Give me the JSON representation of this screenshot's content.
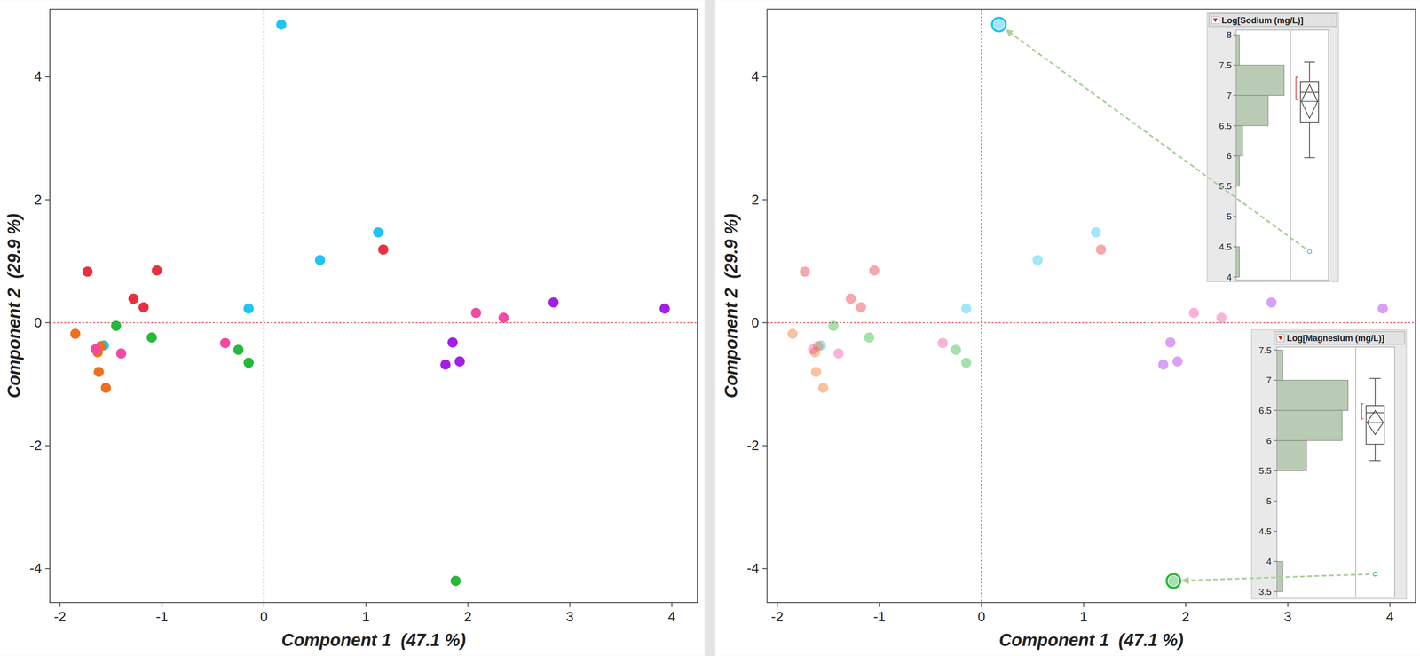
{
  "chart_data": [
    {
      "type": "scatter",
      "xlabel": "Component 1  (47.1 %)",
      "ylabel": "Component 2  (29.9 %)",
      "xlim": [
        -2.1,
        4.25
      ],
      "ylim": [
        -4.55,
        5.1
      ],
      "xticks": [
        -2,
        -1,
        0,
        1,
        2,
        3,
        4
      ],
      "yticks": [
        -4,
        -2,
        0,
        2,
        4
      ],
      "reference": {
        "x": 0,
        "y": 0
      },
      "marker": "circle",
      "series": [
        {
          "color": "#1ec4f2",
          "x": [
            0.17,
            1.12,
            0.55,
            -0.15,
            -1.57
          ],
          "values": [
            4.85,
            1.47,
            1.02,
            0.23,
            -0.37
          ]
        },
        {
          "color": "#e8303f",
          "x": [
            -1.73,
            -1.05,
            -1.28,
            -1.18,
            1.17
          ],
          "values": [
            0.83,
            0.85,
            0.39,
            0.25,
            1.19
          ]
        },
        {
          "color": "#eb7120",
          "x": [
            -1.85,
            -1.63,
            -1.6,
            -1.62,
            -1.55
          ],
          "values": [
            -0.18,
            -0.48,
            -0.38,
            -0.8,
            -1.06
          ]
        },
        {
          "color": "#25b83a",
          "x": [
            -1.45,
            -1.1,
            -0.25,
            -0.15,
            1.88
          ],
          "values": [
            -0.05,
            -0.24,
            -0.44,
            -0.65,
            -4.2
          ]
        },
        {
          "color": "#f04aa5",
          "x": [
            -1.4,
            -1.65,
            -0.38,
            2.08,
            2.35
          ],
          "values": [
            -0.5,
            -0.43,
            -0.33,
            0.16,
            0.08
          ]
        },
        {
          "color": "#a21fe6",
          "x": [
            1.85,
            1.92,
            1.78,
            2.84,
            3.93
          ],
          "values": [
            -0.32,
            -0.63,
            -0.68,
            0.33,
            0.23
          ]
        }
      ]
    },
    {
      "type": "scatter",
      "xlabel": "Component 1  (47.1 %)",
      "ylabel": "Component 2  (29.9 %)",
      "xlim": [
        -2.1,
        4.25
      ],
      "ylim": [
        -4.55,
        5.1
      ],
      "xticks": [
        -2,
        -1,
        0,
        1,
        2,
        3,
        4
      ],
      "yticks": [
        -4,
        -2,
        0,
        2,
        4
      ],
      "reference": {
        "x": 0,
        "y": 0
      },
      "marker": "circle",
      "series": [
        {
          "color": "#1ec4f2",
          "x": [
            0.17,
            1.12,
            0.55,
            -0.15,
            -1.57
          ],
          "values": [
            4.85,
            1.47,
            1.02,
            0.23,
            -0.37
          ]
        },
        {
          "color": "#e8303f",
          "x": [
            -1.73,
            -1.05,
            -1.28,
            -1.18,
            1.17
          ],
          "values": [
            0.83,
            0.85,
            0.39,
            0.25,
            1.19
          ]
        },
        {
          "color": "#eb7120",
          "x": [
            -1.85,
            -1.63,
            -1.6,
            -1.62,
            -1.55
          ],
          "values": [
            -0.18,
            -0.48,
            -0.38,
            -0.8,
            -1.06
          ]
        },
        {
          "color": "#25b83a",
          "x": [
            -1.45,
            -1.1,
            -0.25,
            -0.15,
            1.88
          ],
          "values": [
            -0.05,
            -0.24,
            -0.44,
            -0.65,
            -4.2
          ]
        },
        {
          "color": "#f04aa5",
          "x": [
            -1.4,
            -1.65,
            -0.38,
            2.08,
            2.35
          ],
          "values": [
            -0.5,
            -0.43,
            -0.33,
            0.16,
            0.08
          ]
        },
        {
          "color": "#a21fe6",
          "x": [
            1.85,
            1.92,
            1.78,
            2.84,
            3.93
          ],
          "values": [
            -0.32,
            -0.63,
            -0.68,
            0.33,
            0.23
          ]
        }
      ],
      "outliers": [
        {
          "x": 0.17,
          "y": 4.85,
          "color": "#1ec4f2"
        },
        {
          "x": 1.88,
          "y": -4.2,
          "color": "#25b83a"
        }
      ]
    },
    {
      "type": "histogram",
      "title": "Log[Sodium (mg/L)]",
      "orientation": "horizontal",
      "color": "#b9cab5",
      "tick_labels": "y",
      "bins": [
        4,
        4.5,
        5,
        5.5,
        6,
        6.5,
        7,
        7.5,
        8
      ],
      "values": [
        1,
        0,
        0,
        1,
        2,
        10,
        15,
        1
      ],
      "xlim": [
        0,
        17
      ],
      "ylim": [
        3.95,
        8.08
      ],
      "yticks": [
        4,
        4.5,
        5,
        5.5,
        6,
        6.5,
        7,
        7.5,
        8
      ],
      "box": {
        "min": 5.97,
        "q1": 6.56,
        "median": 7.05,
        "q3": 7.23,
        "max": 7.55,
        "mean": 6.9,
        "mean_ci": [
          6.62,
          7.18
        ],
        "shortest_half": [
          6.93,
          7.3
        ],
        "outliers": [
          4.42
        ]
      }
    },
    {
      "type": "histogram",
      "title": "Log[Magnesium (mg/L)]",
      "orientation": "horizontal",
      "color": "#b9cab5",
      "tick_labels": "y",
      "bins": [
        3.5,
        4,
        4.5,
        5,
        5.5,
        6,
        6.5,
        7,
        7.5
      ],
      "values": [
        1,
        0,
        0,
        0,
        5,
        11,
        12,
        1
      ],
      "xlim": [
        0,
        13.3
      ],
      "ylim": [
        3.41,
        7.55
      ],
      "yticks": [
        3.5,
        4,
        4.5,
        5,
        5.5,
        6,
        6.5,
        7,
        7.5
      ],
      "box": {
        "min": 5.67,
        "q1": 5.94,
        "median": 6.46,
        "q3": 6.58,
        "max": 7.03,
        "mean": 6.3,
        "mean_ci": [
          6.1,
          6.5
        ],
        "shortest_half": [
          6.36,
          6.61
        ],
        "outliers": [
          3.79
        ]
      }
    }
  ]
}
